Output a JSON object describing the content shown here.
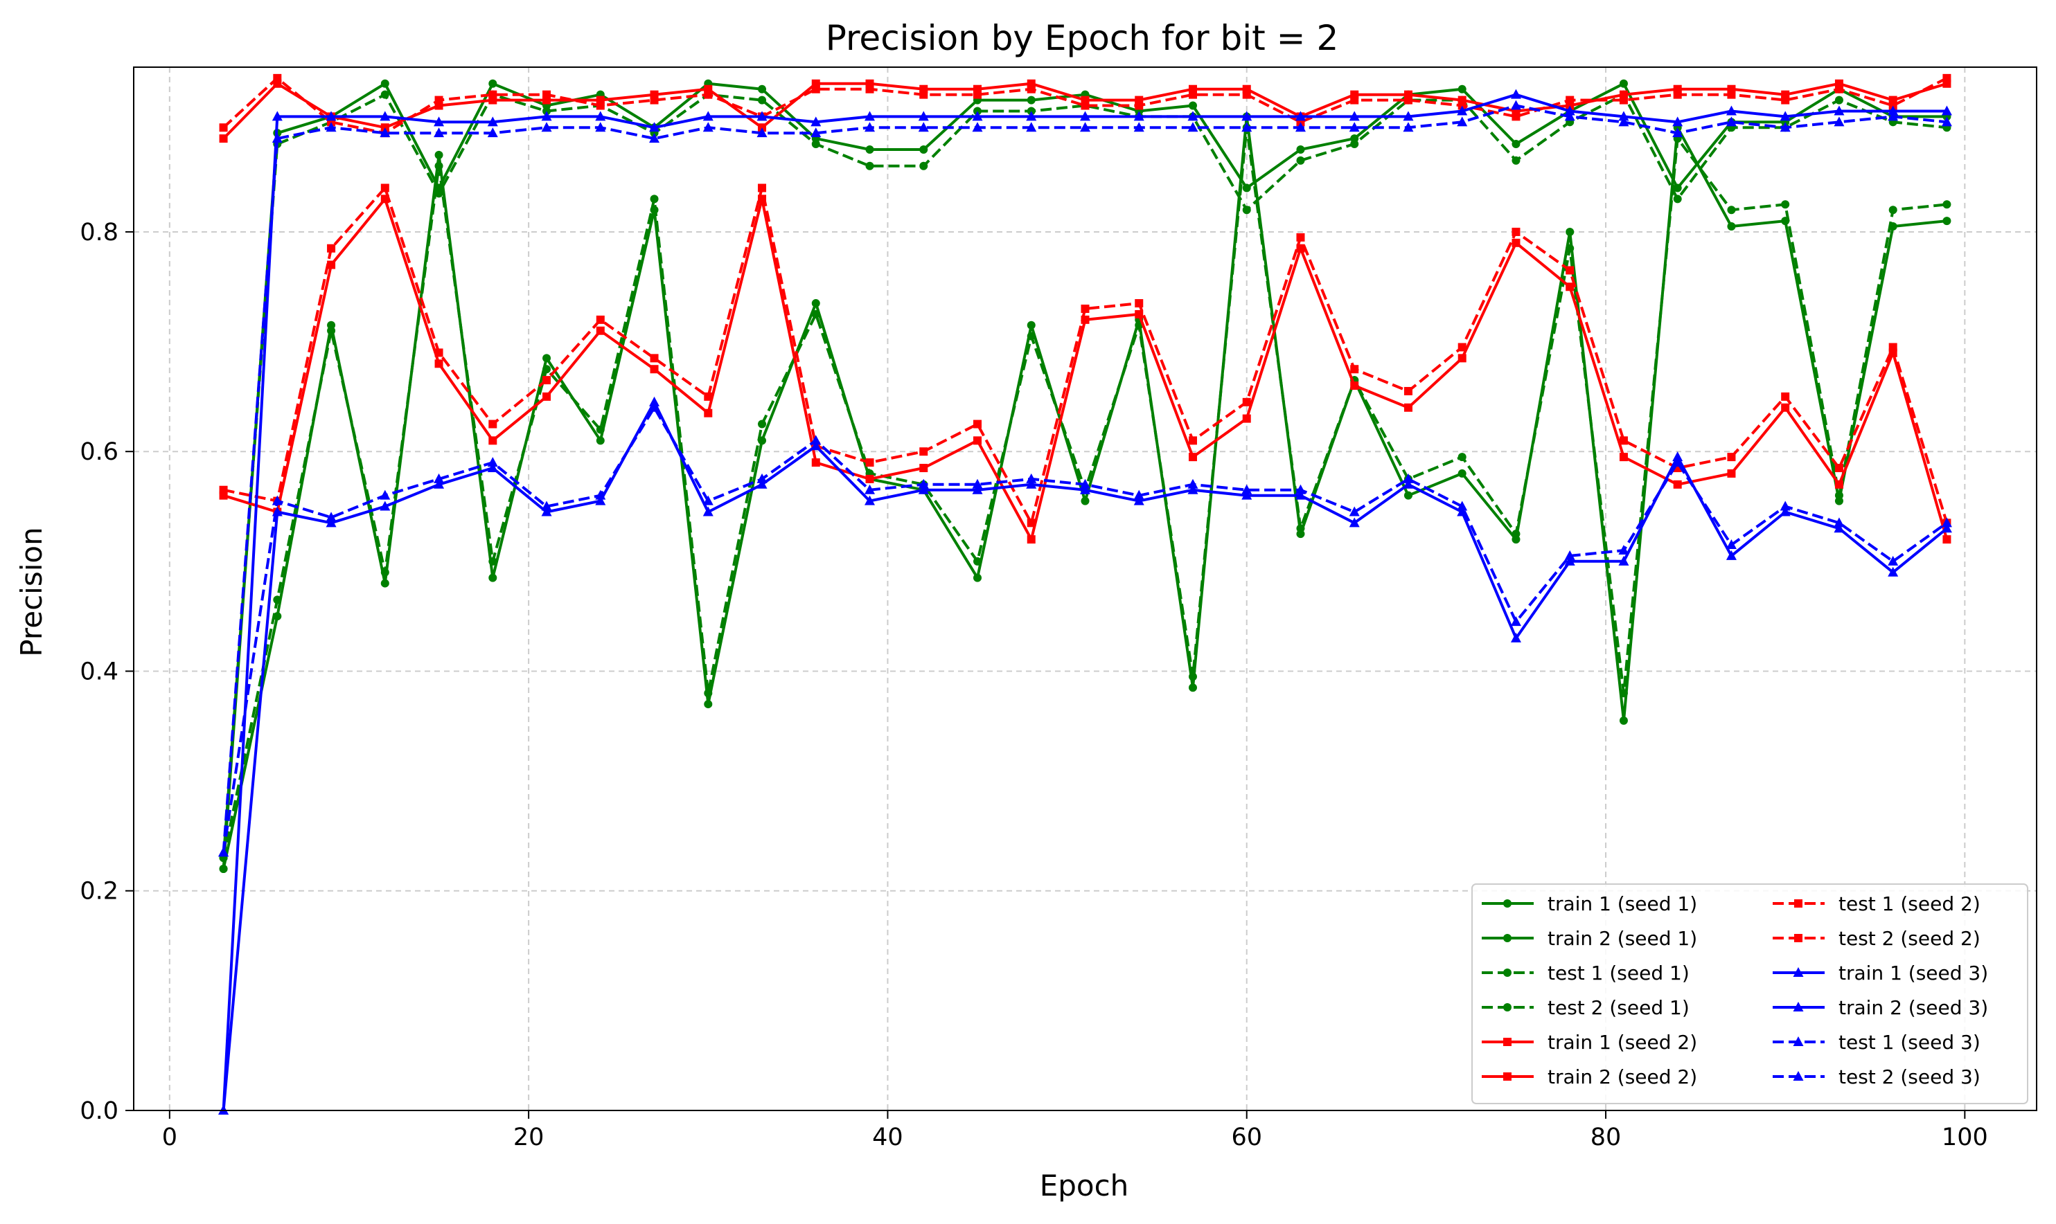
{
  "chart_data": {
    "type": "line",
    "title": "Precision by Epoch for bit = 2",
    "xlabel": "Epoch",
    "ylabel": "Precision",
    "xlim": [
      -2,
      104
    ],
    "ylim": [
      0.0,
      0.95
    ],
    "xticks": [
      "0",
      "20",
      "40",
      "60",
      "80",
      "100"
    ],
    "xtick_values": [
      0,
      20,
      40,
      60,
      80,
      100
    ],
    "yticks": [
      "0.0",
      "0.2",
      "0.4",
      "0.6",
      "0.8"
    ],
    "ytick_values": [
      0.0,
      0.2,
      0.4,
      0.6,
      0.8
    ],
    "grid": true,
    "legend_position": "lower-right",
    "x": [
      3,
      6,
      9,
      12,
      15,
      18,
      21,
      24,
      27,
      30,
      33,
      36,
      39,
      42,
      45,
      48,
      51,
      54,
      57,
      60,
      63,
      66,
      69,
      72,
      75,
      78,
      81,
      84,
      87,
      90,
      93,
      96,
      99
    ],
    "series": [
      {
        "name": "train 1 (seed 1)",
        "color": "#008000",
        "dash": "solid",
        "marker": "circle",
        "values": [
          0.22,
          0.45,
          0.715,
          0.48,
          0.87,
          0.485,
          0.685,
          0.61,
          0.82,
          0.37,
          0.61,
          0.735,
          0.575,
          0.565,
          0.485,
          0.715,
          0.555,
          0.72,
          0.385,
          0.905,
          0.525,
          0.665,
          0.56,
          0.58,
          0.52,
          0.8,
          0.355,
          0.895,
          0.805,
          0.81,
          0.555,
          0.805,
          0.81
        ]
      },
      {
        "name": "train 2 (seed 1)",
        "color": "#008000",
        "dash": "solid",
        "marker": "circle",
        "values": [
          0.22,
          0.89,
          0.905,
          0.935,
          0.84,
          0.935,
          0.915,
          0.925,
          0.895,
          0.935,
          0.93,
          0.885,
          0.875,
          0.875,
          0.92,
          0.92,
          0.925,
          0.91,
          0.915,
          0.84,
          0.875,
          0.885,
          0.925,
          0.93,
          0.88,
          0.91,
          0.935,
          0.84,
          0.9,
          0.9,
          0.93,
          0.905,
          0.905
        ]
      },
      {
        "name": "test 1 (seed 1)",
        "color": "#008000",
        "dash": "dashed",
        "marker": "circle",
        "values": [
          0.23,
          0.465,
          0.71,
          0.49,
          0.86,
          0.5,
          0.675,
          0.62,
          0.83,
          0.38,
          0.625,
          0.725,
          0.58,
          0.57,
          0.5,
          0.705,
          0.565,
          0.715,
          0.395,
          0.895,
          0.53,
          0.665,
          0.575,
          0.595,
          0.525,
          0.785,
          0.38,
          0.885,
          0.82,
          0.825,
          0.56,
          0.82,
          0.825
        ]
      },
      {
        "name": "test 2 (seed 1)",
        "color": "#008000",
        "dash": "dashed",
        "marker": "circle",
        "values": [
          0.23,
          0.88,
          0.9,
          0.925,
          0.835,
          0.925,
          0.91,
          0.915,
          0.89,
          0.925,
          0.92,
          0.88,
          0.86,
          0.86,
          0.91,
          0.91,
          0.915,
          0.905,
          0.905,
          0.82,
          0.865,
          0.88,
          0.92,
          0.92,
          0.865,
          0.9,
          0.925,
          0.83,
          0.895,
          0.895,
          0.92,
          0.9,
          0.895
        ]
      },
      {
        "name": "train 1 (seed 2)",
        "color": "#ff0000",
        "dash": "solid",
        "marker": "square",
        "values": [
          0.56,
          0.545,
          0.77,
          0.83,
          0.68,
          0.61,
          0.65,
          0.71,
          0.675,
          0.635,
          0.83,
          0.59,
          0.575,
          0.585,
          0.61,
          0.52,
          0.72,
          0.725,
          0.595,
          0.63,
          0.785,
          0.66,
          0.64,
          0.685,
          0.79,
          0.75,
          0.595,
          0.57,
          0.58,
          0.64,
          0.57,
          0.69,
          0.52
        ]
      },
      {
        "name": "train 2 (seed 2)",
        "color": "#ff0000",
        "dash": "solid",
        "marker": "square",
        "values": [
          0.885,
          0.935,
          0.905,
          0.895,
          0.915,
          0.92,
          0.92,
          0.92,
          0.925,
          0.93,
          0.895,
          0.935,
          0.935,
          0.93,
          0.93,
          0.935,
          0.92,
          0.92,
          0.93,
          0.93,
          0.905,
          0.925,
          0.925,
          0.92,
          0.91,
          0.915,
          0.925,
          0.93,
          0.93,
          0.925,
          0.935,
          0.92,
          0.935
        ]
      },
      {
        "name": "test 1 (seed 2)",
        "color": "#ff0000",
        "dash": "dashed",
        "marker": "square",
        "values": [
          0.565,
          0.555,
          0.785,
          0.84,
          0.69,
          0.625,
          0.665,
          0.72,
          0.685,
          0.65,
          0.84,
          0.605,
          0.59,
          0.6,
          0.625,
          0.535,
          0.73,
          0.735,
          0.61,
          0.645,
          0.795,
          0.675,
          0.655,
          0.695,
          0.8,
          0.765,
          0.61,
          0.585,
          0.595,
          0.65,
          0.585,
          0.695,
          0.535
        ]
      },
      {
        "name": "test 2 (seed 2)",
        "color": "#ff0000",
        "dash": "dashed",
        "marker": "square",
        "values": [
          0.895,
          0.94,
          0.9,
          0.89,
          0.92,
          0.925,
          0.925,
          0.915,
          0.92,
          0.925,
          0.905,
          0.93,
          0.93,
          0.925,
          0.925,
          0.93,
          0.915,
          0.915,
          0.925,
          0.925,
          0.9,
          0.92,
          0.92,
          0.915,
          0.905,
          0.92,
          0.92,
          0.925,
          0.925,
          0.92,
          0.93,
          0.915,
          0.94
        ]
      },
      {
        "name": "train 1 (seed 3)",
        "color": "#0000ff",
        "dash": "solid",
        "marker": "triangle",
        "values": [
          0.0,
          0.545,
          0.535,
          0.55,
          0.57,
          0.585,
          0.545,
          0.555,
          0.645,
          0.545,
          0.57,
          0.605,
          0.555,
          0.565,
          0.565,
          0.57,
          0.565,
          0.555,
          0.565,
          0.56,
          0.56,
          0.535,
          0.57,
          0.545,
          0.43,
          0.5,
          0.5,
          0.595,
          0.505,
          0.545,
          0.53,
          0.49,
          0.53
        ]
      },
      {
        "name": "train 2 (seed 3)",
        "color": "#0000ff",
        "dash": "solid",
        "marker": "triangle",
        "values": [
          0.0,
          0.905,
          0.905,
          0.905,
          0.9,
          0.9,
          0.905,
          0.905,
          0.895,
          0.905,
          0.905,
          0.9,
          0.905,
          0.905,
          0.905,
          0.905,
          0.905,
          0.905,
          0.905,
          0.905,
          0.905,
          0.905,
          0.905,
          0.91,
          0.925,
          0.91,
          0.905,
          0.9,
          0.91,
          0.905,
          0.91,
          0.91,
          0.91
        ]
      },
      {
        "name": "test 1 (seed 3)",
        "color": "#0000ff",
        "dash": "dashed",
        "marker": "triangle",
        "values": [
          0.235,
          0.555,
          0.54,
          0.56,
          0.575,
          0.59,
          0.55,
          0.56,
          0.64,
          0.555,
          0.575,
          0.61,
          0.565,
          0.57,
          0.57,
          0.575,
          0.57,
          0.56,
          0.57,
          0.565,
          0.565,
          0.545,
          0.575,
          0.55,
          0.445,
          0.505,
          0.51,
          0.59,
          0.515,
          0.55,
          0.535,
          0.5,
          0.535
        ]
      },
      {
        "name": "test 2 (seed 3)",
        "color": "#0000ff",
        "dash": "dashed",
        "marker": "triangle",
        "values": [
          0.235,
          0.885,
          0.895,
          0.89,
          0.89,
          0.89,
          0.895,
          0.895,
          0.885,
          0.895,
          0.89,
          0.89,
          0.895,
          0.895,
          0.895,
          0.895,
          0.895,
          0.895,
          0.895,
          0.895,
          0.895,
          0.895,
          0.895,
          0.9,
          0.915,
          0.905,
          0.9,
          0.89,
          0.9,
          0.895,
          0.9,
          0.905,
          0.9
        ]
      }
    ]
  }
}
